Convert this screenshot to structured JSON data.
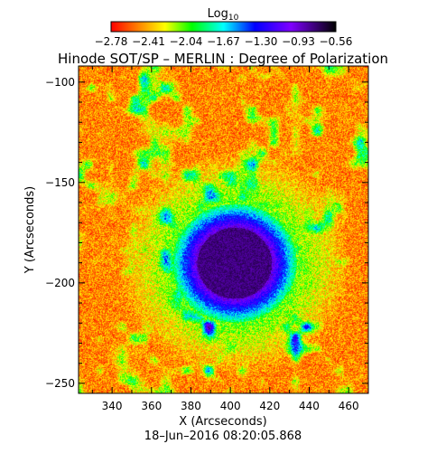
{
  "chart_data": {
    "type": "heatmap",
    "title": "Hinode SOT/SP – MERLIN : Degree of Polarization",
    "colorbar": {
      "label_base": "Log",
      "label_sub": "10",
      "ticks": [
        "−2.78",
        "−2.41",
        "−2.04",
        "−1.67",
        "−1.30",
        "−0.93",
        "−0.56"
      ],
      "range": [
        -2.78,
        -0.56
      ],
      "colormap": "rainbow (red → orange → yellow → green → cyan → blue → purple → black)"
    },
    "xlabel": "X (Arcseconds)",
    "ylabel": "Y (Arcseconds)",
    "xlim": [
      323,
      470
    ],
    "ylim": [
      -255,
      -92
    ],
    "xticks": [
      340,
      360,
      380,
      400,
      420,
      440,
      460
    ],
    "yticks": [
      -100,
      -150,
      -200,
      -250
    ],
    "timestamp": "18–Jun–2016 08:20:05.868",
    "features": {
      "sunspot_center": [
        402,
        -190
      ],
      "umbra_radius_arcsec": 18,
      "penumbra_radius_arcsec": 30,
      "background_log_degree": -2.5
    },
    "colors": {
      "background": "#ff2a00",
      "umbra": "#3d1f9e",
      "penumbra": "#22c8ff"
    }
  }
}
